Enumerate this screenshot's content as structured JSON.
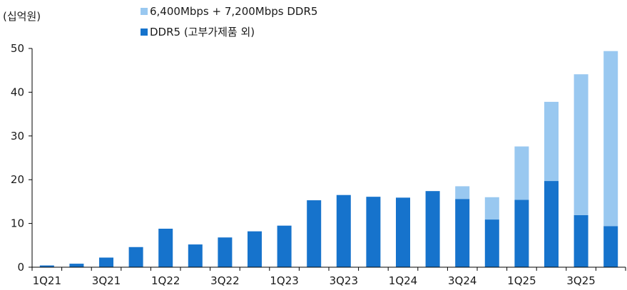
{
  "chart_data": {
    "type": "bar",
    "stacked": true,
    "ylabel": "(십억원)",
    "ylim": [
      0,
      50
    ],
    "yticks": [
      0,
      10,
      20,
      30,
      40,
      50
    ],
    "grid": false,
    "legend_position": "top",
    "categories": [
      "1Q21",
      "2Q21",
      "3Q21",
      "4Q21",
      "1Q22",
      "2Q22",
      "3Q22",
      "4Q22",
      "1Q23",
      "2Q23",
      "3Q23",
      "4Q23",
      "1Q24",
      "2Q24",
      "3Q24",
      "4Q24",
      "1Q25",
      "2Q25",
      "3Q25",
      "4Q25"
    ],
    "x_tick_labels": [
      "1Q21",
      "3Q21",
      "1Q22",
      "3Q22",
      "1Q23",
      "3Q23",
      "1Q24",
      "3Q24",
      "1Q25",
      "3Q25"
    ],
    "series": [
      {
        "name": "DDR5 (고부가제품 외)",
        "color": "#1673cc",
        "values": [
          0.4,
          0.8,
          2.2,
          4.6,
          8.8,
          5.2,
          6.8,
          8.2,
          9.5,
          15.3,
          16.5,
          16.1,
          15.9,
          17.4,
          15.6,
          10.9,
          15.4,
          19.7,
          11.9,
          9.4
        ]
      },
      {
        "name": "6,400Mbps + 7,200Mbps DDR5",
        "color": "#99c8f0",
        "values": [
          0,
          0,
          0,
          0,
          0,
          0,
          0,
          0,
          0,
          0,
          0,
          0,
          0,
          0,
          2.9,
          5.1,
          12.2,
          18.1,
          32.2,
          40.0
        ]
      }
    ]
  }
}
